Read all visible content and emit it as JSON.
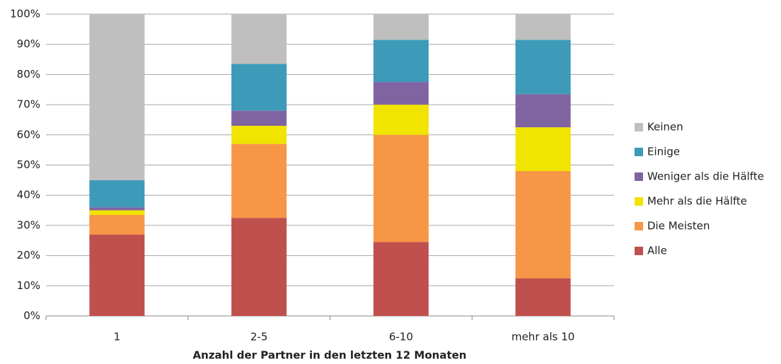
{
  "chart_data": {
    "type": "stacked_bar",
    "x_label": "Anzahl der Partner in den letzten 12 Monaten",
    "categories": [
      "1",
      "2-5",
      "6-10",
      "mehr als 10"
    ],
    "series": [
      {
        "name": "Alle",
        "color": "#c0504d",
        "values": [
          27,
          32.5,
          24.5,
          12.5
        ]
      },
      {
        "name": "Die Meisten",
        "color": "#f79646",
        "values": [
          6.5,
          24.5,
          35.5,
          35.5
        ]
      },
      {
        "name": "Mehr als die Hälfte",
        "color": "#f0e400",
        "values": [
          1.5,
          6,
          10,
          14.5
        ]
      },
      {
        "name": "Weniger als die Hälfte",
        "color": "#8064a2",
        "values": [
          1,
          5,
          7.5,
          11
        ]
      },
      {
        "name": "Einige",
        "color": "#3d9ab8",
        "values": [
          9,
          15.5,
          14,
          18
        ]
      },
      {
        "name": "Keinen",
        "color": "#bfbfbf",
        "values": [
          55,
          16.5,
          8.5,
          8.5
        ]
      }
    ],
    "ylim": [
      0,
      100
    ],
    "yticks": [
      {
        "value": 0,
        "label": "0%"
      },
      {
        "value": 10,
        "label": "10%"
      },
      {
        "value": 20,
        "label": "20%"
      },
      {
        "value": 30,
        "label": "30%"
      },
      {
        "value": 40,
        "label": "40%"
      },
      {
        "value": 50,
        "label": "50%"
      },
      {
        "value": 60,
        "label": "60%"
      },
      {
        "value": 70,
        "label": "70%"
      },
      {
        "value": 80,
        "label": "80%"
      },
      {
        "value": 90,
        "label": "90%"
      },
      {
        "value": 100,
        "label": "100%"
      }
    ],
    "grid": true,
    "legend": "right"
  }
}
